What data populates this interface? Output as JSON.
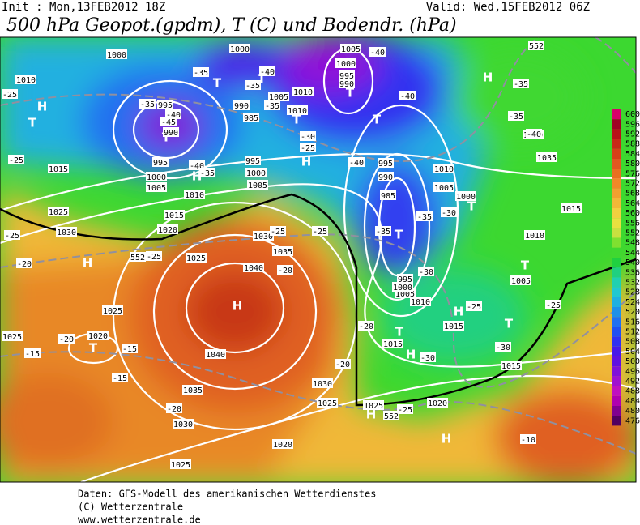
{
  "header": {
    "init": "Init : Mon,13FEB2012 18Z",
    "valid": "Valid: Wed,15FEB2012 06Z",
    "title": "500 hPa Geopot.(gpdm), T (C) und Bodendr. (hPa)"
  },
  "legend": {
    "values": [
      600,
      596,
      592,
      588,
      584,
      580,
      576,
      572,
      568,
      564,
      560,
      556,
      552,
      548,
      544,
      540,
      536,
      532,
      528,
      524,
      520,
      516,
      512,
      508,
      504,
      500,
      496,
      492,
      488,
      484,
      480,
      476
    ],
    "colors": [
      "#d8006a",
      "#a00024",
      "#b81018",
      "#c82818",
      "#d84018",
      "#e05820",
      "#e87020",
      "#f08828",
      "#f0a030",
      "#f0b838",
      "#f0d040",
      "#e8e040",
      "#c8e040",
      "#80e030",
      "#40d830",
      "#20d040",
      "#20d080",
      "#20d0b0",
      "#20c8d0",
      "#20b0e0",
      "#2090e8",
      "#2070f0",
      "#2050f0",
      "#3030f0",
      "#4818e8",
      "#6010e0",
      "#8010d8",
      "#a010d0",
      "#c010c0",
      "#b000b0",
      "#800090",
      "#500060"
    ]
  },
  "map": {
    "labels": [
      "H",
      "T",
      "T",
      "H",
      "T",
      "T",
      "T",
      "H",
      "T",
      "T",
      "T",
      "T",
      "H",
      "H",
      "H",
      "T",
      "H",
      "H",
      "T",
      "T",
      "T",
      "H",
      "H",
      "1010",
      "1000",
      "1000",
      "995",
      "990",
      "985",
      "990",
      "995",
      "1000",
      "1005",
      "1010",
      "1015",
      "1025",
      "1030",
      "1020",
      "1015",
      "1025",
      "1030",
      "1035",
      "1040",
      "1040",
      "1035",
      "1030",
      "1025",
      "1020",
      "1025",
      "1020",
      "1025",
      "1030",
      "1025",
      "1025",
      "1020",
      "1015",
      "1015",
      "1010",
      "1005",
      "1000",
      "995",
      "985",
      "990",
      "995",
      "1005",
      "1010",
      "1000",
      "1010",
      "1015",
      "1005",
      "1015",
      "1035",
      "1040",
      "1000",
      "995",
      "990",
      "1005",
      "1010",
      "1005",
      "1010",
      "995",
      "1000",
      "1005",
      "-35",
      "-40",
      "-45",
      "-40",
      "-35",
      "-35",
      "-35",
      "-40",
      "-35",
      "-30",
      "-25",
      "-40",
      "-40",
      "-40",
      "-35",
      "-35",
      "-40",
      "-35",
      "-35",
      "-30",
      "-30",
      "-25",
      "-20",
      "-30",
      "-30",
      "-25",
      "-25",
      "-10",
      "-25",
      "-25",
      "-25",
      "-20",
      "-20",
      "-25",
      "-25",
      "-25",
      "-15",
      "-20",
      "-15",
      "-15",
      "-20",
      "-20",
      "552",
      "552",
      "552"
    ]
  },
  "footer": [
    "Daten: GFS-Modell des amerikanischen Wetterdienstes",
    "(C) Wetterzentrale",
    "www.wetterzentrale.de"
  ]
}
